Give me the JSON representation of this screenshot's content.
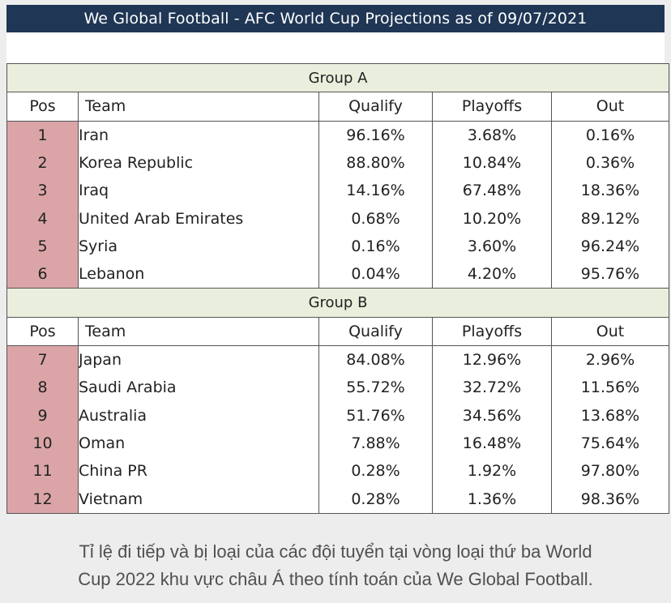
{
  "banner": {
    "title": "We Global Football - AFC World Cup Projections as of 09/07/2021"
  },
  "columns": {
    "pos": "Pos",
    "team": "Team",
    "qualify": "Qualify",
    "playoffs": "Playoffs",
    "out": "Out"
  },
  "groups": [
    {
      "name": "Group A",
      "rows": [
        {
          "pos": "1",
          "team": "Iran",
          "qualify": "96.16%",
          "playoffs": "3.68%",
          "out": "0.16%"
        },
        {
          "pos": "2",
          "team": "Korea Republic",
          "qualify": "88.80%",
          "playoffs": "10.84%",
          "out": "0.36%"
        },
        {
          "pos": "3",
          "team": "Iraq",
          "qualify": "14.16%",
          "playoffs": "67.48%",
          "out": "18.36%"
        },
        {
          "pos": "4",
          "team": "United Arab Emirates",
          "qualify": "0.68%",
          "playoffs": "10.20%",
          "out": "89.12%"
        },
        {
          "pos": "5",
          "team": "Syria",
          "qualify": "0.16%",
          "playoffs": "3.60%",
          "out": "96.24%"
        },
        {
          "pos": "6",
          "team": "Lebanon",
          "qualify": "0.04%",
          "playoffs": "4.20%",
          "out": "95.76%"
        }
      ]
    },
    {
      "name": "Group B",
      "rows": [
        {
          "pos": "7",
          "team": "Japan",
          "qualify": "84.08%",
          "playoffs": "12.96%",
          "out": "2.96%"
        },
        {
          "pos": "8",
          "team": "Saudi Arabia",
          "qualify": "55.72%",
          "playoffs": "32.72%",
          "out": "11.56%"
        },
        {
          "pos": "9",
          "team": "Australia",
          "qualify": "51.76%",
          "playoffs": "34.56%",
          "out": "13.68%"
        },
        {
          "pos": "10",
          "team": "Oman",
          "qualify": "7.88%",
          "playoffs": "16.48%",
          "out": "75.64%"
        },
        {
          "pos": "11",
          "team": "China PR",
          "qualify": "0.28%",
          "playoffs": "1.92%",
          "out": "97.80%"
        },
        {
          "pos": "12",
          "team": "Vietnam",
          "qualify": "0.28%",
          "playoffs": "1.36%",
          "out": "98.36%"
        }
      ]
    }
  ],
  "caption": {
    "line1": "Tỉ lệ đi tiếp và bị loại của các đội tuyển tại vòng loại thứ ba World",
    "line2": "Cup 2022 khu vực châu Á theo tính toán của We Global Football."
  }
}
